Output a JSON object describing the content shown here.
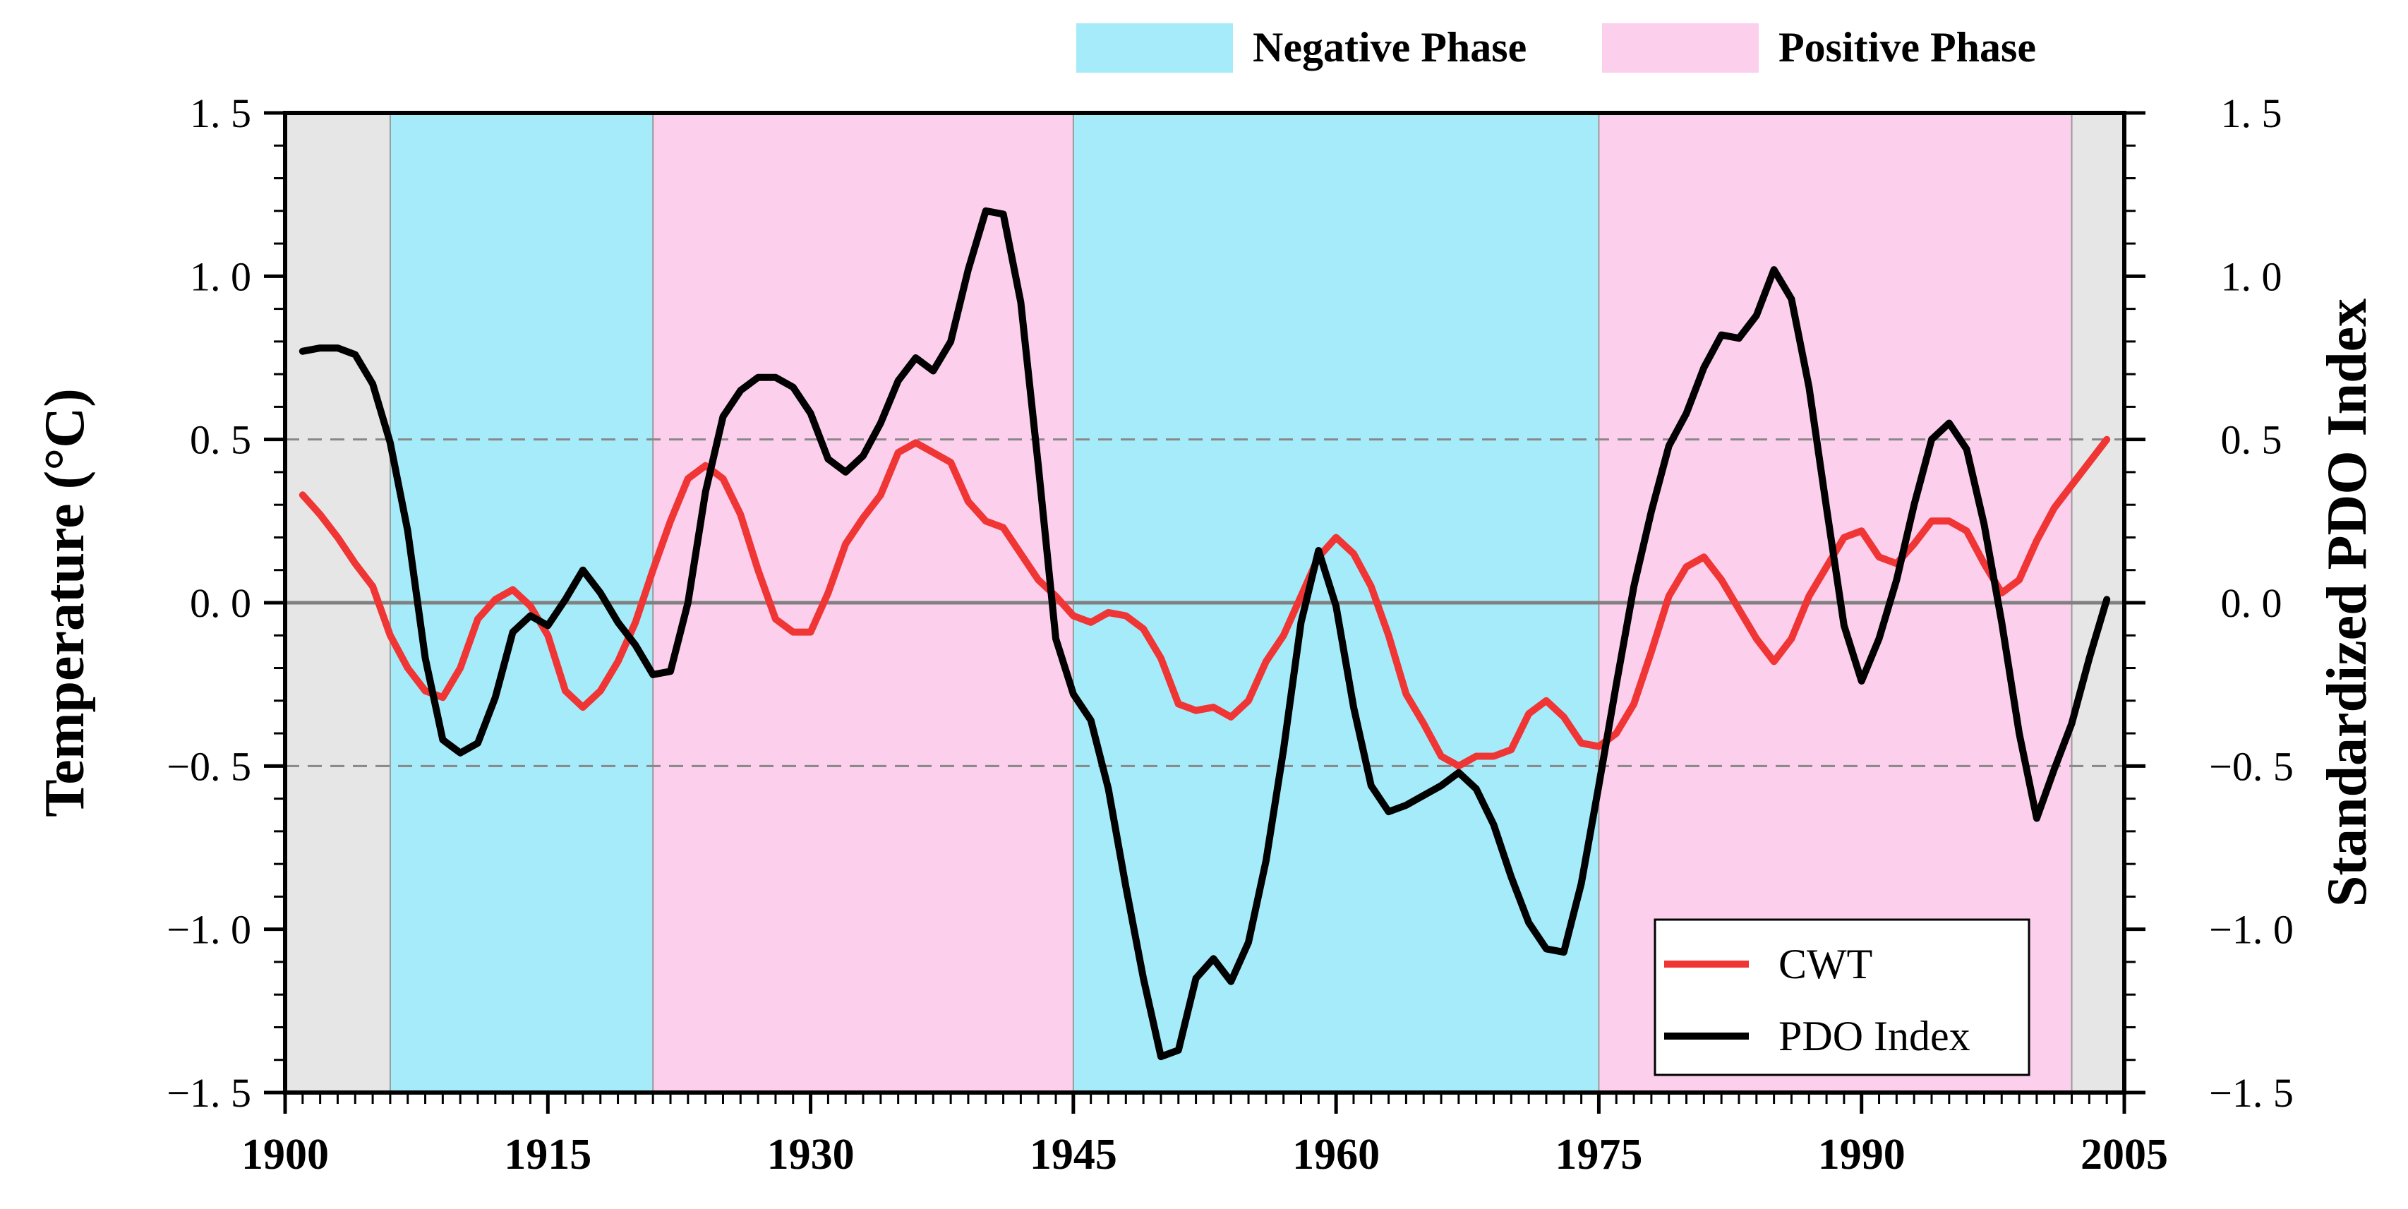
{
  "chart_data": {
    "type": "line",
    "xlim": [
      1900,
      2005
    ],
    "ylim_left": [
      -1.5,
      1.5
    ],
    "ylim_right": [
      -1.5,
      1.5
    ],
    "ylabel_left": "Temperature (°C)",
    "ylabel_right": "Standardized PDO Index",
    "x_ticks": [
      "1900",
      "1915",
      "1930",
      "1945",
      "1960",
      "1975",
      "1990",
      "2005"
    ],
    "y_ticks_left": [
      "1. 5",
      "1. 0",
      "0. 5",
      "0. 0",
      "−0. 5",
      "−1. 0",
      "−1. 5"
    ],
    "y_ticks_right": [
      "1. 5",
      "1. 0",
      "0. 5",
      "0. 0",
      "−0. 5",
      "−1. 0",
      "−1. 5"
    ],
    "reference_lines": [
      0.5,
      -0.5
    ],
    "phase_legend": [
      {
        "label": "Negative Phase",
        "color": "#a6ebfa"
      },
      {
        "label": "Positive Phase",
        "color": "#fccfed"
      }
    ],
    "phase_bands": [
      {
        "start": 1900,
        "end": 1906,
        "type": "none",
        "color": "#e6e6e6"
      },
      {
        "start": 1906,
        "end": 1921,
        "type": "negative",
        "color": "#a6ebfa"
      },
      {
        "start": 1921,
        "end": 1945,
        "type": "positive",
        "color": "#fccfed"
      },
      {
        "start": 1945,
        "end": 1975,
        "type": "negative",
        "color": "#a6ebfa"
      },
      {
        "start": 1975,
        "end": 2002,
        "type": "positive",
        "color": "#fccfed"
      },
      {
        "start": 2002,
        "end": 2005,
        "type": "none",
        "color": "#e6e6e6"
      }
    ],
    "series": [
      {
        "name": "CWT",
        "color": "#f03535",
        "x": [
          1901,
          1902,
          1903,
          1904,
          1905,
          1906,
          1907,
          1908,
          1909,
          1910,
          1911,
          1912,
          1913,
          1914,
          1915,
          1916,
          1917,
          1918,
          1919,
          1920,
          1921,
          1922,
          1923,
          1924,
          1925,
          1926,
          1927,
          1928,
          1929,
          1930,
          1931,
          1932,
          1933,
          1934,
          1935,
          1936,
          1937,
          1938,
          1939,
          1940,
          1941,
          1942,
          1943,
          1944,
          1945,
          1946,
          1947,
          1948,
          1949,
          1950,
          1951,
          1952,
          1953,
          1954,
          1955,
          1956,
          1957,
          1958,
          1959,
          1960,
          1961,
          1962,
          1963,
          1964,
          1965,
          1966,
          1967,
          1968,
          1969,
          1970,
          1971,
          1972,
          1973,
          1974,
          1975,
          1976,
          1977,
          1978,
          1979,
          1980,
          1981,
          1982,
          1983,
          1984,
          1985,
          1986,
          1987,
          1988,
          1989,
          1990,
          1991,
          1992,
          1993,
          1994,
          1995,
          1996,
          1997,
          1998,
          1999,
          2000,
          2001,
          2002,
          2003,
          2004
        ],
        "values": [
          0.33,
          0.27,
          0.2,
          0.12,
          0.05,
          -0.1,
          -0.2,
          -0.27,
          -0.29,
          -0.2,
          -0.05,
          0.01,
          0.04,
          -0.01,
          -0.1,
          -0.27,
          -0.32,
          -0.27,
          -0.18,
          -0.06,
          0.1,
          0.25,
          0.38,
          0.42,
          0.38,
          0.27,
          0.1,
          -0.05,
          -0.09,
          -0.09,
          0.03,
          0.18,
          0.26,
          0.33,
          0.46,
          0.49,
          0.46,
          0.43,
          0.31,
          0.25,
          0.23,
          0.15,
          0.07,
          0.02,
          -0.04,
          -0.06,
          -0.03,
          -0.04,
          -0.08,
          -0.17,
          -0.31,
          -0.33,
          -0.32,
          -0.35,
          -0.3,
          -0.18,
          -0.1,
          0.02,
          0.14,
          0.2,
          0.15,
          0.05,
          -0.1,
          -0.28,
          -0.37,
          -0.47,
          -0.5,
          -0.47,
          -0.47,
          -0.45,
          -0.34,
          -0.3,
          -0.35,
          -0.43,
          -0.44,
          -0.4,
          -0.31,
          -0.15,
          0.02,
          0.11,
          0.14,
          0.07,
          -0.02,
          -0.11,
          -0.18,
          -0.11,
          0.02,
          0.11,
          0.2,
          0.22,
          0.14,
          0.12,
          0.18,
          0.25,
          0.25,
          0.22,
          0.12,
          0.03,
          0.07,
          0.19,
          0.29,
          0.36,
          0.43,
          0.5
        ]
      },
      {
        "name": "PDO Index",
        "color": "#000000",
        "x": [
          1901,
          1902,
          1903,
          1904,
          1905,
          1906,
          1907,
          1908,
          1909,
          1910,
          1911,
          1912,
          1913,
          1914,
          1915,
          1916,
          1917,
          1918,
          1919,
          1920,
          1921,
          1922,
          1923,
          1924,
          1925,
          1926,
          1927,
          1928,
          1929,
          1930,
          1931,
          1932,
          1933,
          1934,
          1935,
          1936,
          1937,
          1938,
          1939,
          1940,
          1941,
          1942,
          1943,
          1944,
          1945,
          1946,
          1947,
          1948,
          1949,
          1950,
          1951,
          1952,
          1953,
          1954,
          1955,
          1956,
          1957,
          1958,
          1959,
          1960,
          1961,
          1962,
          1963,
          1964,
          1965,
          1966,
          1967,
          1968,
          1969,
          1970,
          1971,
          1972,
          1973,
          1974,
          1975,
          1976,
          1977,
          1978,
          1979,
          1980,
          1981,
          1982,
          1983,
          1984,
          1985,
          1986,
          1987,
          1988,
          1989,
          1990,
          1991,
          1992,
          1993,
          1994,
          1995,
          1996,
          1997,
          1998,
          1999,
          2000,
          2001,
          2002,
          2003,
          2004
        ],
        "values": [
          0.77,
          0.78,
          0.78,
          0.76,
          0.67,
          0.49,
          0.22,
          -0.17,
          -0.42,
          -0.46,
          -0.43,
          -0.29,
          -0.09,
          -0.04,
          -0.07,
          0.01,
          0.1,
          0.03,
          -0.06,
          -0.13,
          -0.22,
          -0.21,
          0.0,
          0.34,
          0.57,
          0.65,
          0.69,
          0.69,
          0.66,
          0.58,
          0.44,
          0.4,
          0.45,
          0.55,
          0.68,
          0.75,
          0.71,
          0.8,
          1.02,
          1.2,
          1.19,
          0.92,
          0.42,
          -0.11,
          -0.28,
          -0.36,
          -0.57,
          -0.87,
          -1.15,
          -1.39,
          -1.37,
          -1.15,
          -1.09,
          -1.16,
          -1.04,
          -0.79,
          -0.45,
          -0.06,
          0.16,
          -0.01,
          -0.32,
          -0.56,
          -0.64,
          -0.62,
          -0.59,
          -0.56,
          -0.52,
          -0.57,
          -0.68,
          -0.84,
          -0.98,
          -1.06,
          -1.07,
          -0.86,
          -0.56,
          -0.25,
          0.05,
          0.28,
          0.48,
          0.58,
          0.72,
          0.82,
          0.81,
          0.88,
          1.02,
          0.93,
          0.66,
          0.29,
          -0.07,
          -0.24,
          -0.11,
          0.07,
          0.3,
          0.5,
          0.55,
          0.47,
          0.24,
          -0.06,
          -0.4,
          -0.66,
          -0.51,
          -0.37,
          -0.17,
          0.01
        ]
      }
    ]
  }
}
